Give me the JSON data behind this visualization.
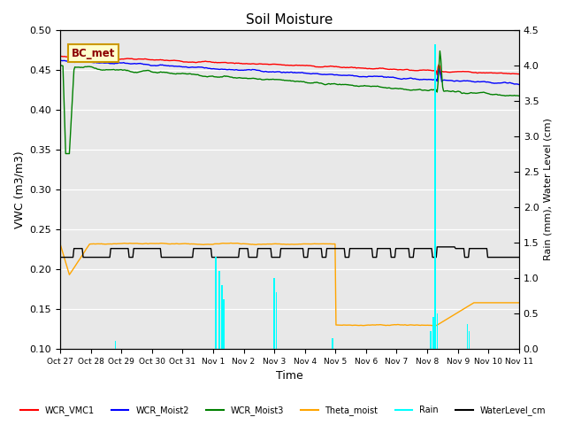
{
  "title": "Soil Moisture",
  "ylabel_left": "VWC (m3/m3)",
  "ylabel_right": "Rain (mm), Water Level (cm)",
  "xlabel": "Time",
  "ylim_left": [
    0.1,
    0.5
  ],
  "ylim_right": [
    0.0,
    4.5
  ],
  "yticks_left": [
    0.1,
    0.15,
    0.2,
    0.25,
    0.3,
    0.35,
    0.4,
    0.45,
    0.5
  ],
  "yticks_right": [
    0.0,
    0.5,
    1.0,
    1.5,
    2.0,
    2.5,
    3.0,
    3.5,
    4.0,
    4.5
  ],
  "background_color": "#e8e8e8",
  "legend_labels": [
    "WCR_VMC1",
    "WCR_Moist2",
    "WCR_Moist3",
    "Theta_moist",
    "Rain",
    "WaterLevel_cm"
  ],
  "legend_colors": [
    "red",
    "blue",
    "green",
    "orange",
    "cyan",
    "black"
  ],
  "bc_met_box_facecolor": "#ffffcc",
  "bc_met_box_edgecolor": "#cc9900",
  "bc_met_text_color": "darkred",
  "n_points": 500,
  "total_days": 15,
  "x_tick_labels": [
    "Oct 27",
    "Oct 28",
    "Oct 29",
    "Oct 30",
    "Oct 31",
    "Nov 1",
    "Nov 2",
    "Nov 3",
    "Nov 4",
    "Nov 5",
    "Nov 6",
    "Nov 7",
    "Nov 8",
    "Nov 9",
    "Nov 10",
    "Nov 11"
  ]
}
